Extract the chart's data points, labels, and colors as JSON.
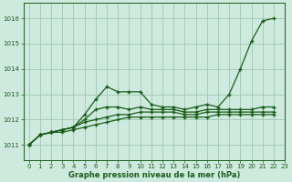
{
  "background_color": "#ceeade",
  "grid_color": "#9ec8b0",
  "line_color": "#1a5c1a",
  "xlabel": "Graphe pression niveau de la mer (hPa)",
  "xlim": [
    -0.5,
    23
  ],
  "ylim": [
    1010.4,
    1016.6
  ],
  "yticks": [
    1011,
    1012,
    1013,
    1014,
    1015,
    1016
  ],
  "xticks": [
    0,
    1,
    2,
    3,
    4,
    5,
    6,
    7,
    8,
    9,
    10,
    11,
    12,
    13,
    14,
    15,
    16,
    17,
    18,
    19,
    20,
    21,
    22,
    23
  ],
  "series": [
    {
      "x": [
        0,
        1,
        2,
        3,
        4,
        5,
        6,
        7,
        8,
        9,
        10,
        11,
        12,
        13,
        14,
        15,
        16,
        17,
        18,
        19,
        20,
        21,
        22
      ],
      "y": [
        1011.0,
        1011.4,
        1011.5,
        1011.6,
        1011.7,
        1012.2,
        1012.8,
        1013.3,
        1013.1,
        1013.1,
        1013.1,
        1012.6,
        1012.5,
        1012.5,
        1012.4,
        1012.5,
        1012.6,
        1012.5,
        1013.0,
        1014.0,
        1015.1,
        1015.9,
        1016.0
      ]
    },
    {
      "x": [
        0,
        1,
        2,
        3,
        4,
        5,
        6,
        7,
        8,
        9,
        10,
        11,
        12,
        13,
        14,
        15,
        16,
        17,
        18,
        19,
        20,
        21,
        22
      ],
      "y": [
        1011.0,
        1011.4,
        1011.5,
        1011.6,
        1011.7,
        1012.0,
        1012.4,
        1012.5,
        1012.5,
        1012.4,
        1012.5,
        1012.4,
        1012.4,
        1012.4,
        1012.3,
        1012.3,
        1012.4,
        1012.4,
        1012.4,
        1012.4,
        1012.4,
        1012.5,
        1012.5
      ]
    },
    {
      "x": [
        0,
        1,
        2,
        3,
        4,
        5,
        6,
        7,
        8,
        9,
        10,
        11,
        12,
        13,
        14,
        15,
        16,
        17,
        18,
        19,
        20,
        21,
        22
      ],
      "y": [
        1011.0,
        1011.4,
        1011.5,
        1011.6,
        1011.7,
        1011.9,
        1012.0,
        1012.1,
        1012.2,
        1012.2,
        1012.3,
        1012.3,
        1012.3,
        1012.3,
        1012.2,
        1012.2,
        1012.3,
        1012.3,
        1012.3,
        1012.3,
        1012.3,
        1012.3,
        1012.3
      ]
    },
    {
      "x": [
        0,
        1,
        2,
        3,
        4,
        5,
        6,
        7,
        8,
        9,
        10,
        11,
        12,
        13,
        14,
        15,
        16,
        17,
        18,
        19,
        20,
        21,
        22
      ],
      "y": [
        1011.0,
        1011.4,
        1011.5,
        1011.5,
        1011.6,
        1011.7,
        1011.8,
        1011.9,
        1012.0,
        1012.1,
        1012.1,
        1012.1,
        1012.1,
        1012.1,
        1012.1,
        1012.1,
        1012.1,
        1012.2,
        1012.2,
        1012.2,
        1012.2,
        1012.2,
        1012.2
      ]
    }
  ]
}
